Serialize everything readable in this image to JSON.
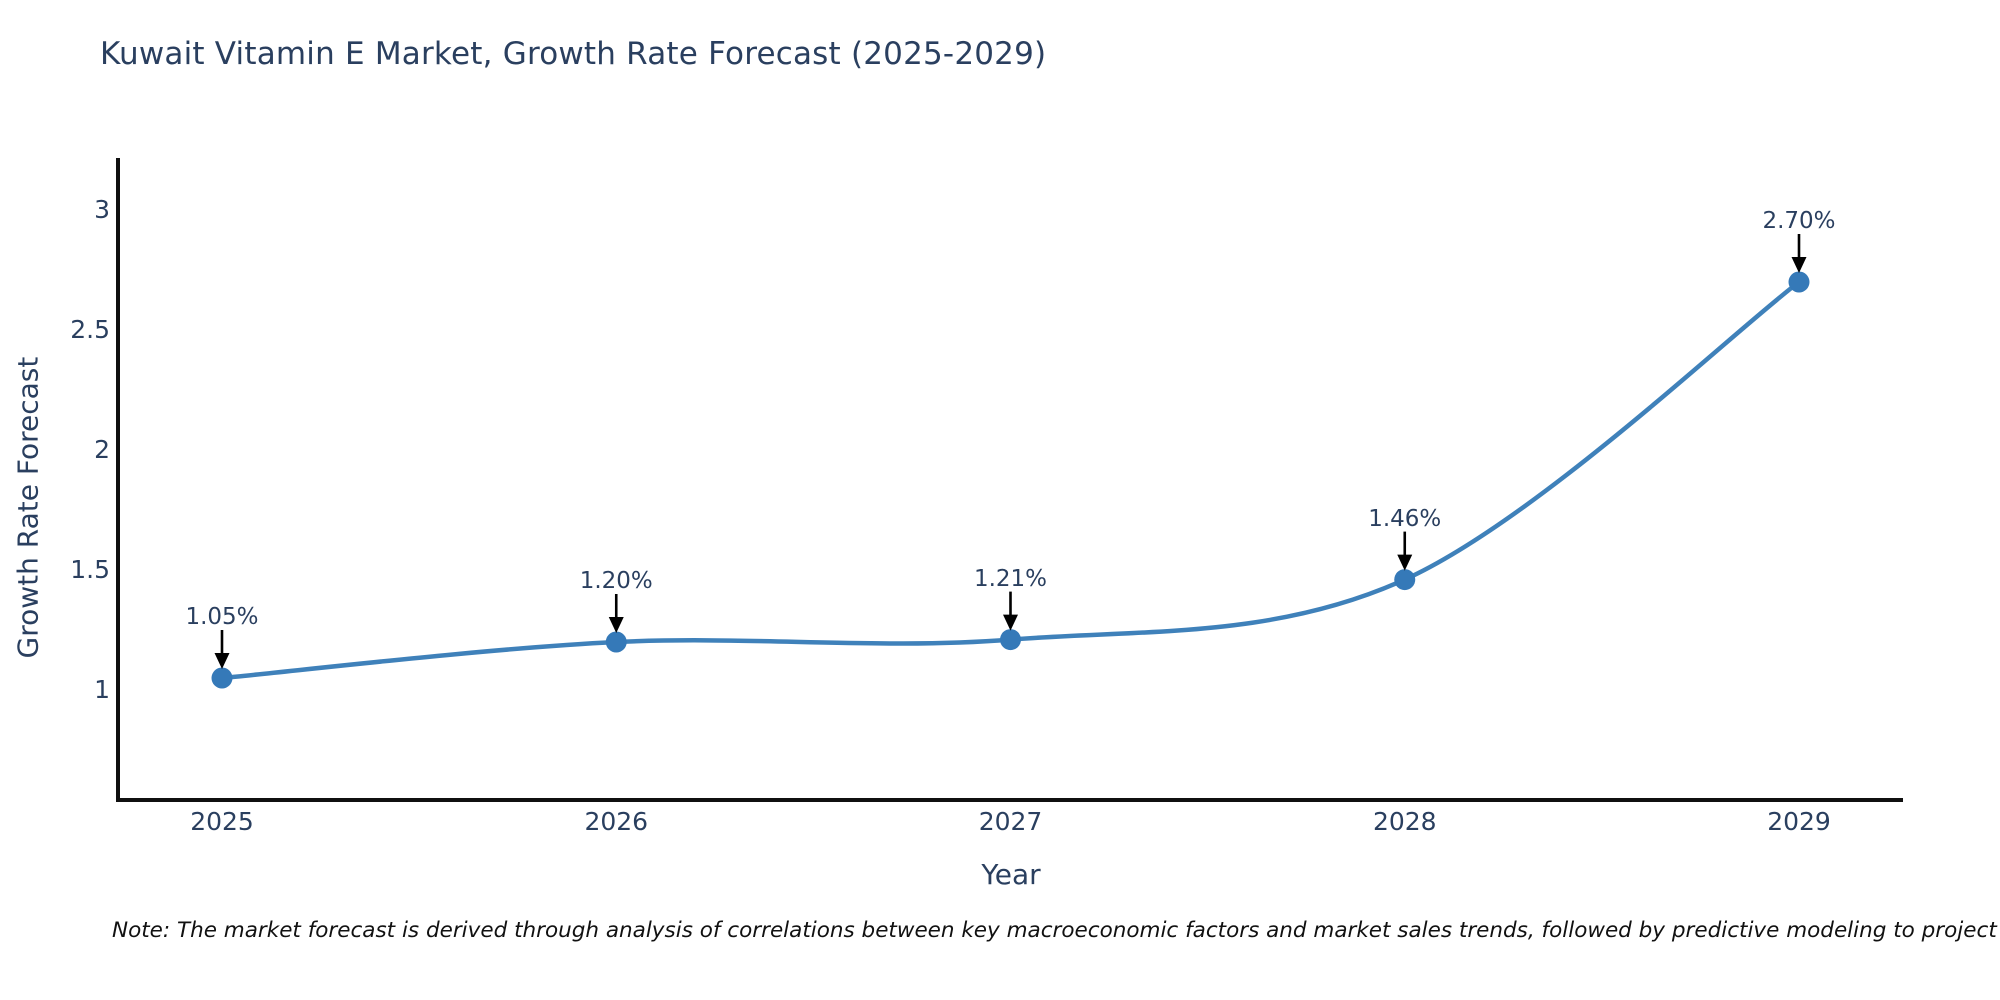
{
  "title": "Kuwait Vitamin E Market, Growth Rate Forecast (2025-2029)",
  "note": "Note: The market forecast is derived through analysis of correlations between key macroeconomic factors and market sales trends, followed by predictive modeling to project future sales",
  "chart_data": {
    "type": "line",
    "title": "Kuwait Vitamin E Market, Growth Rate Forecast (2025-2029)",
    "xlabel": "Year",
    "ylabel": "Growth Rate Forecast",
    "x": [
      2025,
      2026,
      2027,
      2028,
      2029
    ],
    "values": [
      1.05,
      1.2,
      1.21,
      1.46,
      2.7
    ],
    "point_labels": [
      "1.05%",
      "1.20%",
      "1.21%",
      "1.46%",
      "2.70%"
    ],
    "x_tick_labels": [
      "2025",
      "2026",
      "2027",
      "2028",
      "2029"
    ],
    "y_ticks": [
      1,
      1.5,
      2,
      2.5,
      3
    ],
    "y_tick_labels": [
      "1",
      "1.5",
      "2",
      "2.5",
      "3"
    ],
    "ylim": [
      0.54,
      3.21
    ],
    "grid": false,
    "legend": "none",
    "line_color": "#3f81ba",
    "marker_color": "#3579b8",
    "arrow_color": "#000000",
    "axis_color": "#101010",
    "text_color": "#2a3f5f"
  }
}
